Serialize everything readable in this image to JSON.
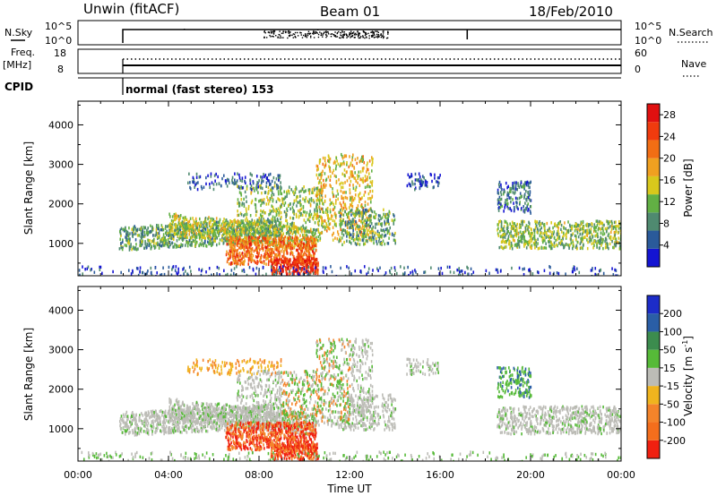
{
  "header": {
    "station": "Unwin (fitACF)",
    "beam": "Beam 01",
    "date": "18/Feb/2010"
  },
  "strip_panels": {
    "nsky_label": "N.Sky",
    "nsearch_label": "N.Search",
    "nsky_ticks": [
      "10^5",
      "10^0"
    ],
    "nsearch_ticks": [
      "10^5",
      "10^0"
    ],
    "freq_label_1": "Freq.",
    "freq_label_2": "[MHz]",
    "freq_ticks": [
      "18",
      "8"
    ],
    "nave_label": "Nave",
    "nave_ticks": [
      "60",
      "0"
    ],
    "cpid_label": "CPID",
    "cpid_text": "normal (fast stereo) 153"
  },
  "colors": {
    "power_scale": [
      "#1414d2",
      "#2a5a9a",
      "#4f8a70",
      "#62b044",
      "#d8c81c",
      "#f0a020",
      "#f26e14",
      "#f03b0e",
      "#e01010"
    ],
    "velocity_scale": [
      "#1c2cc8",
      "#2a5ea6",
      "#3c8c4e",
      "#56ba38",
      "#bcbcb6",
      "#f0b41e",
      "#f4842a",
      "#f46e1c",
      "#f02010"
    ]
  },
  "chart_data": [
    {
      "type": "heatmap",
      "name": "Power",
      "xlabel": "Time UT",
      "ylabel": "Slant Range [km]",
      "x_ticks": [
        "00:00",
        "04:00",
        "08:00",
        "12:00",
        "16:00",
        "20:00",
        "00:00"
      ],
      "xlim_hours": [
        0,
        24
      ],
      "y_ticks": [
        1000,
        2000,
        3000,
        4000
      ],
      "ylim_km": [
        180,
        4600
      ],
      "colorbar_label": "Power [dB]",
      "colorbar_ticks": [
        4,
        8,
        12,
        16,
        20,
        24,
        28
      ],
      "colorbar_range": [
        0,
        30
      ]
    },
    {
      "type": "heatmap",
      "name": "Velocity",
      "xlabel": "Time UT",
      "ylabel": "Slant Range [km]",
      "x_ticks": [
        "00:00",
        "04:00",
        "08:00",
        "12:00",
        "16:00",
        "20:00",
        "00:00"
      ],
      "xlim_hours": [
        0,
        24
      ],
      "y_ticks": [
        1000,
        2000,
        3000,
        4000
      ],
      "ylim_km": [
        180,
        4600
      ],
      "colorbar_label": "Velocity [m s",
      "colorbar_label_sup": "-1",
      "colorbar_label_end": "]",
      "colorbar_ticks": [
        200,
        100,
        50,
        15,
        -15,
        -50,
        -100,
        -200
      ]
    }
  ]
}
